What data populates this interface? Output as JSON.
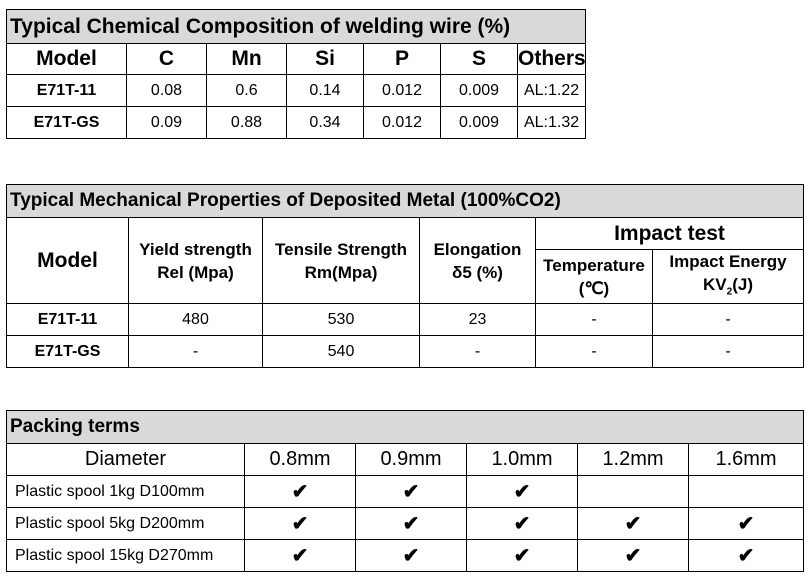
{
  "chem": {
    "title": "Typical Chemical Composition of welding wire (%)",
    "headers": [
      "Model",
      "C",
      "Mn",
      "Si",
      "P",
      "S",
      "Others"
    ],
    "rows": [
      [
        "E71T-11",
        "0.08",
        "0.6",
        "0.14",
        "0.012",
        "0.009",
        "AL:1.22"
      ],
      [
        "E71T-GS",
        "0.09",
        "0.88",
        "0.34",
        "0.012",
        "0.009",
        "AL:1.32"
      ]
    ]
  },
  "mech": {
    "title": "Typical Mechanical Properties of Deposited Metal (100%CO2)",
    "model_header": "Model",
    "yield_line1": "Yield strength",
    "yield_line2": "Rel (Mpa)",
    "tensile_line1": "Tensile Strength",
    "tensile_line2": "Rm(Mpa)",
    "elong_line1": "Elongation",
    "elong_line2": "δ5 (%)",
    "impact_header": "Impact test",
    "temp_line1": "Temperature",
    "temp_line2": "(℃)",
    "energy_line1": "Impact Energy",
    "energy_line2_pre": "KV",
    "energy_line2_sub": "2",
    "energy_line2_post": "(J)",
    "rows": [
      [
        "E71T-11",
        "480",
        "530",
        "23",
        "-",
        "-"
      ],
      [
        "E71T-GS",
        "-",
        "540",
        "-",
        "-",
        "-"
      ]
    ]
  },
  "pack": {
    "title": "Packing terms",
    "diameter_label": "Diameter",
    "sizes": [
      "0.8mm",
      "0.9mm",
      "1.0mm",
      "1.2mm",
      "1.6mm"
    ],
    "check_symbol": "✔",
    "rows": [
      {
        "label": "Plastic spool 1kg D100mm",
        "checks": [
          true,
          true,
          true,
          false,
          false
        ]
      },
      {
        "label": "Plastic spool 5kg D200mm",
        "checks": [
          true,
          true,
          true,
          true,
          true
        ]
      },
      {
        "label": "Plastic spool 15kg D270mm",
        "checks": [
          true,
          true,
          true,
          true,
          true
        ]
      }
    ]
  }
}
